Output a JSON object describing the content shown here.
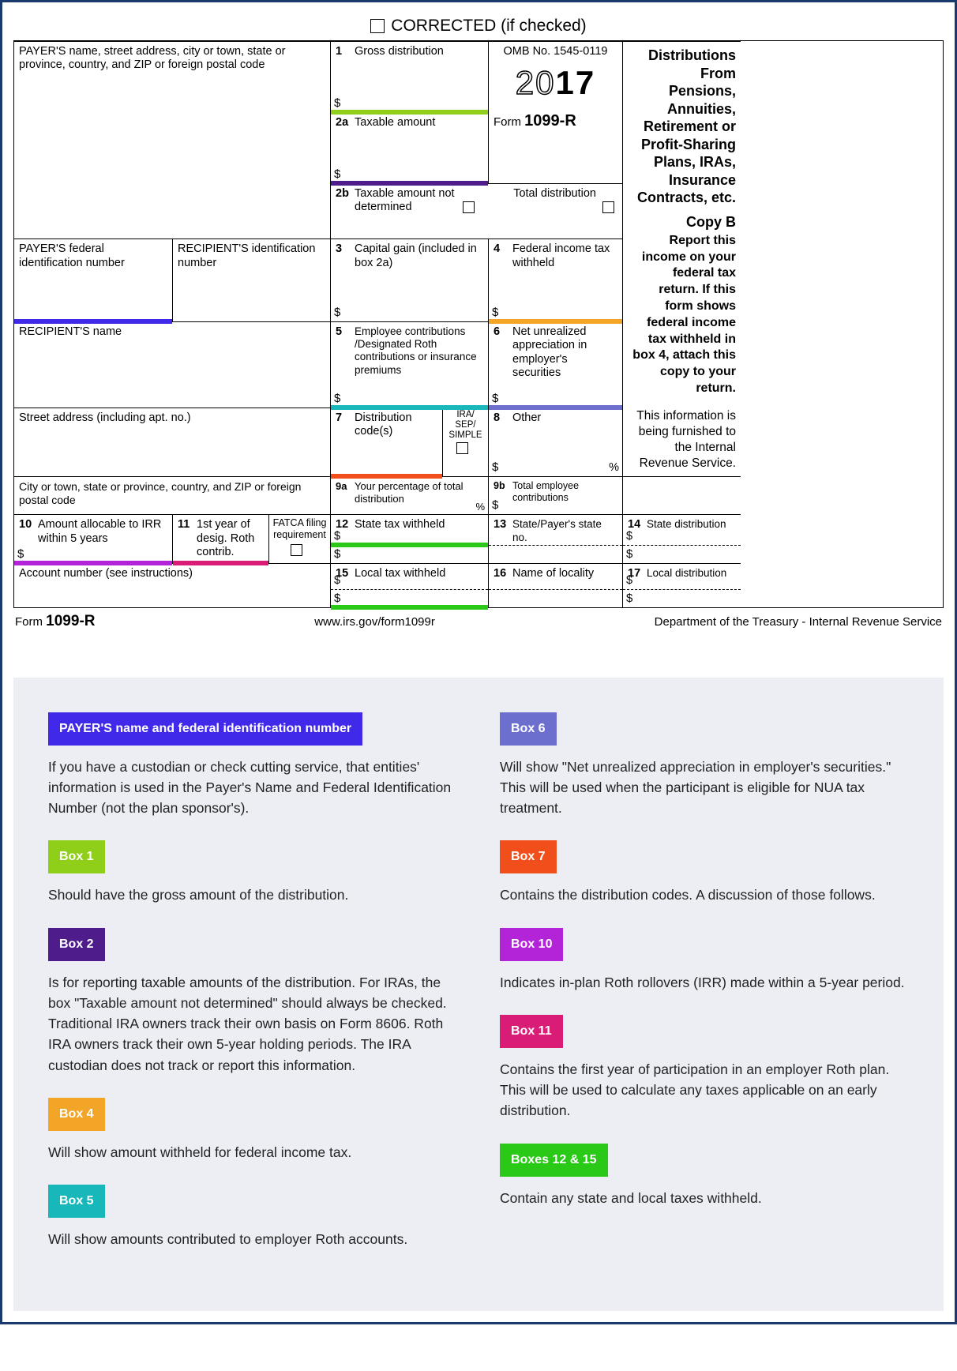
{
  "corrected_label": "CORRECTED (if checked)",
  "payer_block_label": "PAYER'S name, street address, city or town, state or province, country, and ZIP or foreign postal code",
  "box1": {
    "num": "1",
    "label": "Gross distribution",
    "color": "#8fcf1a"
  },
  "box2a": {
    "num": "2a",
    "label": "Taxable amount",
    "color": "#4f1c8c"
  },
  "omb": "OMB No. 1545-0119",
  "year": "2017",
  "form_prefix": "Form",
  "form_no": "1099-R",
  "right_title": "Distributions From Pensions, Annuities, Retirement or Profit-Sharing Plans, IRAs, Insurance Contracts, etc.",
  "copy_label": "Copy  B",
  "right_bold": "Report this income on your federal tax return. If this form shows federal income tax withheld in box 4, attach this copy to your return.",
  "right_info": "This information is being furnished to the Internal Revenue Service.",
  "box2b": {
    "num": "2b",
    "label_a": "Taxable amount not determined",
    "label_b": "Total distribution"
  },
  "payer_fin": "PAYER'S federal identification number",
  "recip_idn": "RECIPIENT'S identification number",
  "payer_hl_color": "#4029e8",
  "box3": {
    "num": "3",
    "label": "Capital gain (included in box 2a)"
  },
  "box4": {
    "num": "4",
    "label": "Federal income tax withheld",
    "color": "#f2a526"
  },
  "recip_name": "RECIPIENT'S name",
  "box5": {
    "num": "5",
    "label": "Employee contributions /Designated Roth contributions or insurance premiums",
    "color": "#17b7ba"
  },
  "box6": {
    "num": "6",
    "label": "Net unrealized appreciation in employer's securities",
    "color": "#6d6fcf"
  },
  "street": "Street address (including apt. no.)",
  "box7": {
    "num": "7",
    "label": "Distribution code(s)",
    "sub": "IRA/\nSEP/\nSIMPLE",
    "color": "#f04e1a"
  },
  "box8": {
    "num": "8",
    "label": "Other"
  },
  "city": "City or town, state or province, country, and ZIP or foreign postal code",
  "box9a": {
    "num": "9a",
    "label": "Your percentage of total distribution"
  },
  "box9b": {
    "num": "9b",
    "label": "Total employee contributions"
  },
  "box10": {
    "num": "10",
    "label": "Amount allocable to IRR within 5 years",
    "color": "#b324d8"
  },
  "box11": {
    "num": "11",
    "label": "1st year of desig. Roth contrib.",
    "color": "#d91c76"
  },
  "fatca": "FATCA filing requirement",
  "box12": {
    "num": "12",
    "label": "State tax withheld",
    "color": "#2ac817"
  },
  "box13": {
    "num": "13",
    "label": "State/Payer's state no."
  },
  "box14": {
    "num": "14",
    "label": "State distribution"
  },
  "acct": "Account number (see instructions)",
  "box15": {
    "num": "15",
    "label": "Local tax withheld",
    "color": "#2ac817"
  },
  "box16": {
    "num": "16",
    "label": "Name of locality"
  },
  "box17": {
    "num": "17",
    "label": "Local distribution"
  },
  "footer_left_prefix": "Form ",
  "footer_url": "www.irs.gov/form1099r",
  "footer_right": "Department of the Treasury - Internal Revenue Service",
  "legend": {
    "left": [
      {
        "badge": "PAYER'S name and federal identification number",
        "color": "#4029e8",
        "text": "If you have a custodian or check cutting service, that entities' information is used in the Payer's Name and Federal Identification Number (not the plan sponsor's)."
      },
      {
        "badge": "Box 1",
        "color": "#8fcf1a",
        "text": "Should have the gross amount of the distribution."
      },
      {
        "badge": "Box 2",
        "color": "#4f1c8c",
        "text": "Is for reporting taxable amounts of the distribution. For IRAs, the box \"Taxable amount not determined\" should always be checked. Traditional IRA owners track their own basis on Form 8606. Roth IRA owners track their own 5-year holding periods. The IRA custodian does not track or report this information."
      },
      {
        "badge": "Box 4",
        "color": "#f2a526",
        "text": "Will show amount withheld for federal income tax."
      },
      {
        "badge": "Box 5",
        "color": "#17b7ba",
        "text": "Will show amounts contributed to employer Roth accounts."
      }
    ],
    "right": [
      {
        "badge": "Box 6",
        "color": "#6d6fcf",
        "text": "Will show \"Net unrealized appreciation in employer's securities.\" This will be used when the participant is eligible for NUA tax treatment."
      },
      {
        "badge": "Box 7",
        "color": "#f04e1a",
        "text": "Contains the distribution codes. A discussion of those follows."
      },
      {
        "badge": "Box 10",
        "color": "#b324d8",
        "text": "Indicates in-plan Roth rollovers (IRR) made within a 5-year period."
      },
      {
        "badge": "Box 11",
        "color": "#d91c76",
        "text": "Contains the first year of participation in an employer Roth plan. This will be used to calculate any taxes applicable on an early distribution."
      },
      {
        "badge": "Boxes 12 & 15",
        "color": "#2ac817",
        "text": "Contain any state and local taxes withheld."
      }
    ]
  }
}
